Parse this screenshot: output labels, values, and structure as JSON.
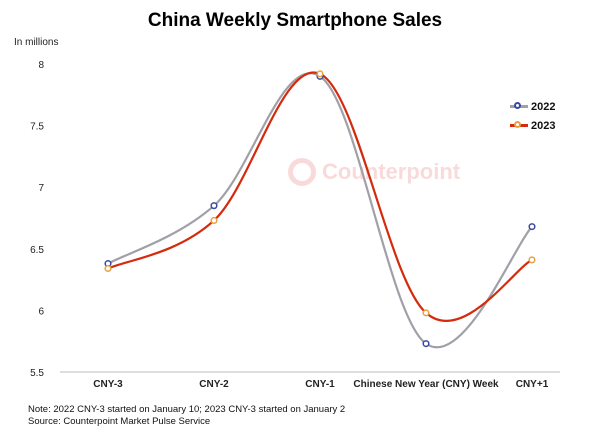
{
  "chart_data": {
    "type": "line",
    "title": "China Weekly Smartphone Sales",
    "ylabel": "In millions",
    "xlabel": "",
    "categories": [
      "CNY-3",
      "CNY-2",
      "CNY-1",
      "Chinese New Year (CNY) Week",
      "CNY+1"
    ],
    "yticks": [
      "5.5",
      "6",
      "6.5",
      "7",
      "7.5",
      "8"
    ],
    "ylim": [
      5.5,
      8
    ],
    "grid": false,
    "legend_position": "right",
    "series": [
      {
        "name": "2022",
        "values": [
          6.38,
          6.85,
          7.9,
          5.73,
          6.68
        ],
        "color": "#a0a0a8",
        "marker_color": "#3b4aa0"
      },
      {
        "name": "2023",
        "values": [
          6.34,
          6.73,
          7.92,
          5.98,
          6.41
        ],
        "color": "#d42a0e",
        "marker_color": "#e8a040"
      }
    ]
  },
  "watermark": {
    "text": "Counterpoint"
  },
  "notes": [
    "Note: 2022 CNY-3 started on January 10; 2023 CNY-3 started on January 2",
    "Source: Counterpoint Market Pulse Service"
  ]
}
